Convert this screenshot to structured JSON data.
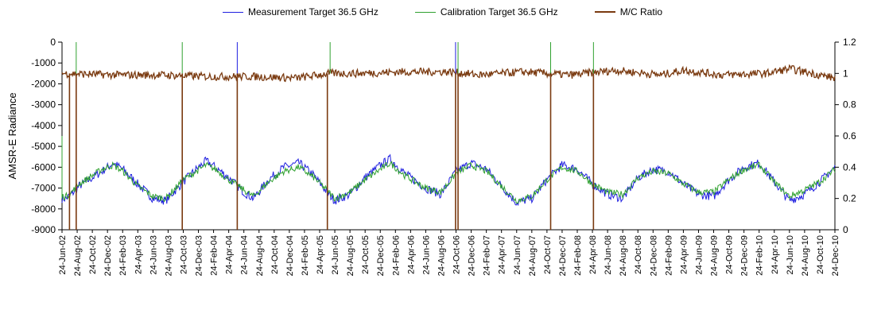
{
  "chart_data": {
    "type": "line",
    "title": "",
    "ylabel": "AMSR-E Radiance",
    "ylim": [
      -9000,
      0
    ],
    "y2lim": [
      0,
      1.2
    ],
    "yticks": [
      0,
      -1000,
      -2000,
      -3000,
      -4000,
      -5000,
      -6000,
      -7000,
      -8000,
      -9000
    ],
    "y2ticks": [
      1.2,
      1,
      0.8,
      0.6,
      0.4,
      0.2,
      0
    ],
    "y2tick_labels": [
      "1.2",
      "1",
      "0.8",
      "0.6",
      "0.4",
      "0.2",
      "0"
    ],
    "xlim": [
      "2002-06-24",
      "2010-12-24"
    ],
    "x_tick_labels": [
      "24-Jun-02",
      "24-Aug-02",
      "24-Oct-02",
      "24-Dec-02",
      "24-Feb-03",
      "24-Apr-03",
      "24-Jun-03",
      "24-Aug-03",
      "24-Oct-03",
      "24-Dec-03",
      "24-Feb-04",
      "24-Apr-04",
      "24-Jun-04",
      "24-Aug-04",
      "24-Oct-04",
      "24-Dec-04",
      "24-Feb-05",
      "24-Apr-05",
      "24-Jun-05",
      "24-Aug-05",
      "24-Oct-05",
      "24-Dec-05",
      "24-Feb-06",
      "24-Apr-06",
      "24-Jun-06",
      "24-Aug-06",
      "24-Oct-06",
      "24-Dec-06",
      "24-Feb-07",
      "24-Apr-07",
      "24-Jun-07",
      "24-Aug-07",
      "24-Oct-07",
      "24-Dec-07",
      "24-Feb-08",
      "24-Apr-08",
      "24-Jun-08",
      "24-Aug-08",
      "24-Oct-08",
      "24-Dec-08",
      "24-Feb-09",
      "24-Apr-09",
      "24-Jun-09",
      "24-Aug-09",
      "24-Oct-09",
      "24-Dec-09",
      "24-Feb-10",
      "24-Apr-10",
      "24-Jun-10",
      "24-Aug-10",
      "24-Oct-10",
      "24-Dec-10"
    ],
    "legend_position": "top",
    "grid": false,
    "series": [
      {
        "name": "Measurement Target 36.5 GHz",
        "axis": "left",
        "color": "#1f1fe0",
        "points": [
          [
            "2002-06-24",
            -7500
          ],
          [
            "2002-07-10",
            -7500
          ],
          [
            "2002-08-01",
            -7300
          ],
          [
            "2002-09-01",
            -6900
          ],
          [
            "2002-10-24",
            -6500
          ],
          [
            "2002-12-01",
            -6200
          ],
          [
            "2003-01-15",
            -5800
          ],
          [
            "2003-02-24",
            -6100
          ],
          [
            "2003-04-24",
            -6800
          ],
          [
            "2003-06-24",
            -7500
          ],
          [
            "2003-08-15",
            -7600
          ],
          [
            "2003-10-24",
            -6700
          ],
          [
            "2003-12-15",
            -6100
          ],
          [
            "2004-01-24",
            -5700
          ],
          [
            "2004-03-01",
            -6000
          ],
          [
            "2004-04-24",
            -6500
          ],
          [
            "2004-06-24",
            -7200
          ],
          [
            "2004-08-01",
            -7500
          ],
          [
            "2004-10-01",
            -6600
          ],
          [
            "2004-12-01",
            -6000
          ],
          [
            "2005-02-01",
            -5800
          ],
          [
            "2005-04-01",
            -6400
          ],
          [
            "2005-05-24",
            -7200
          ],
          [
            "2005-06-24",
            -7600
          ],
          [
            "2005-08-24",
            -7300
          ],
          [
            "2005-10-24",
            -6500
          ],
          [
            "2005-12-24",
            -5900
          ],
          [
            "2006-02-01",
            -5600
          ],
          [
            "2006-04-01",
            -6300
          ],
          [
            "2006-06-24",
            -7000
          ],
          [
            "2006-08-24",
            -7300
          ],
          [
            "2006-10-24",
            -6200
          ],
          [
            "2006-12-24",
            -5800
          ],
          [
            "2007-02-24",
            -6100
          ],
          [
            "2007-04-24",
            -6900
          ],
          [
            "2007-06-24",
            -7700
          ],
          [
            "2007-08-24",
            -7500
          ],
          [
            "2007-10-24",
            -6600
          ],
          [
            "2007-12-24",
            -5900
          ],
          [
            "2008-02-24",
            -6100
          ],
          [
            "2008-04-24",
            -6800
          ],
          [
            "2008-06-24",
            -7300
          ],
          [
            "2008-08-24",
            -7500
          ],
          [
            "2008-10-24",
            -6500
          ],
          [
            "2008-12-24",
            -6100
          ],
          [
            "2009-02-24",
            -6200
          ],
          [
            "2009-04-24",
            -6800
          ],
          [
            "2009-06-24",
            -7300
          ],
          [
            "2009-08-24",
            -7400
          ],
          [
            "2009-10-24",
            -6600
          ],
          [
            "2009-12-24",
            -6000
          ],
          [
            "2010-02-24",
            -5800
          ],
          [
            "2010-04-24",
            -6700
          ],
          [
            "2010-06-24",
            -7600
          ],
          [
            "2010-08-24",
            -7300
          ],
          [
            "2010-10-24",
            -6700
          ],
          [
            "2010-12-24",
            -6000
          ]
        ]
      },
      {
        "name": "Calibration Target 36.5 GHz",
        "axis": "left",
        "color": "#2fa12f",
        "points": [
          [
            "2002-06-24",
            -7400
          ],
          [
            "2002-07-10",
            -7400
          ],
          [
            "2002-08-01",
            -7200
          ],
          [
            "2002-09-01",
            -6800
          ],
          [
            "2002-10-24",
            -6400
          ],
          [
            "2002-12-01",
            -6100
          ],
          [
            "2003-01-15",
            -5900
          ],
          [
            "2003-02-24",
            -6200
          ],
          [
            "2003-04-24",
            -6900
          ],
          [
            "2003-06-24",
            -7400
          ],
          [
            "2003-08-15",
            -7500
          ],
          [
            "2003-10-24",
            -6600
          ],
          [
            "2003-12-15",
            -6200
          ],
          [
            "2004-01-24",
            -5900
          ],
          [
            "2004-03-01",
            -6100
          ],
          [
            "2004-04-24",
            -6600
          ],
          [
            "2004-06-24",
            -7100
          ],
          [
            "2004-08-01",
            -7400
          ],
          [
            "2004-10-01",
            -6700
          ],
          [
            "2004-12-01",
            -6200
          ],
          [
            "2005-02-01",
            -6000
          ],
          [
            "2005-04-01",
            -6500
          ],
          [
            "2005-05-24",
            -7100
          ],
          [
            "2005-06-24",
            -7500
          ],
          [
            "2005-08-24",
            -7200
          ],
          [
            "2005-10-24",
            -6600
          ],
          [
            "2005-12-24",
            -6100
          ],
          [
            "2006-02-01",
            -5800
          ],
          [
            "2006-04-01",
            -6400
          ],
          [
            "2006-06-24",
            -7000
          ],
          [
            "2006-08-24",
            -7200
          ],
          [
            "2006-10-24",
            -6300
          ],
          [
            "2006-12-24",
            -5900
          ],
          [
            "2007-02-24",
            -6200
          ],
          [
            "2007-04-24",
            -6900
          ],
          [
            "2007-06-24",
            -7600
          ],
          [
            "2007-08-24",
            -7400
          ],
          [
            "2007-10-24",
            -6600
          ],
          [
            "2007-12-24",
            -6000
          ],
          [
            "2008-02-24",
            -6200
          ],
          [
            "2008-04-24",
            -6800
          ],
          [
            "2008-06-24",
            -7200
          ],
          [
            "2008-08-24",
            -7300
          ],
          [
            "2008-10-24",
            -6500
          ],
          [
            "2008-12-24",
            -6200
          ],
          [
            "2009-02-24",
            -6300
          ],
          [
            "2009-04-24",
            -6800
          ],
          [
            "2009-06-24",
            -7200
          ],
          [
            "2009-08-24",
            -7200
          ],
          [
            "2009-10-24",
            -6600
          ],
          [
            "2009-12-24",
            -6100
          ],
          [
            "2010-02-24",
            -5900
          ],
          [
            "2010-04-24",
            -6700
          ],
          [
            "2010-06-24",
            -7400
          ],
          [
            "2010-08-24",
            -7100
          ],
          [
            "2010-10-24",
            -6700
          ],
          [
            "2010-12-24",
            -6100
          ]
        ]
      },
      {
        "name": "M/C Ratio",
        "axis": "right",
        "color": "#7a3a10",
        "points": [
          [
            "2002-06-24",
            1.0
          ],
          [
            "2003-01-24",
            0.99
          ],
          [
            "2003-07-24",
            0.99
          ],
          [
            "2004-01-24",
            0.98
          ],
          [
            "2004-07-24",
            0.98
          ],
          [
            "2005-01-24",
            0.97
          ],
          [
            "2005-06-01",
            1.0
          ],
          [
            "2005-09-24",
            1.0
          ],
          [
            "2006-03-24",
            1.01
          ],
          [
            "2006-09-24",
            1.01
          ],
          [
            "2007-01-24",
            0.99
          ],
          [
            "2007-07-24",
            1.01
          ],
          [
            "2008-01-24",
            0.99
          ],
          [
            "2008-07-24",
            1.02
          ],
          [
            "2009-01-24",
            0.99
          ],
          [
            "2009-04-24",
            1.02
          ],
          [
            "2009-09-24",
            0.99
          ],
          [
            "2010-03-24",
            1.0
          ],
          [
            "2010-06-24",
            1.03
          ],
          [
            "2010-12-24",
            0.97
          ]
        ]
      }
    ],
    "dropouts": [
      {
        "series": "M/C Ratio",
        "dates": [
          "2002-07-24",
          "2002-08-20",
          "2003-10-20",
          "2004-05-28",
          "2005-05-25",
          "2006-10-22",
          "2006-11-01",
          "2007-11-08",
          "2008-04-28"
        ]
      },
      {
        "series": "Calibration Target 36.5 GHz",
        "dates": [
          "2002-06-24",
          "2002-08-20",
          "2003-10-20",
          "2005-06-05",
          "2006-11-01",
          "2007-11-08",
          "2008-04-28"
        ],
        "dropout_to": -4500
      },
      {
        "series": "Measurement Target 36.5 GHz",
        "dates": [
          "2004-05-28",
          "2006-10-22"
        ]
      }
    ]
  }
}
